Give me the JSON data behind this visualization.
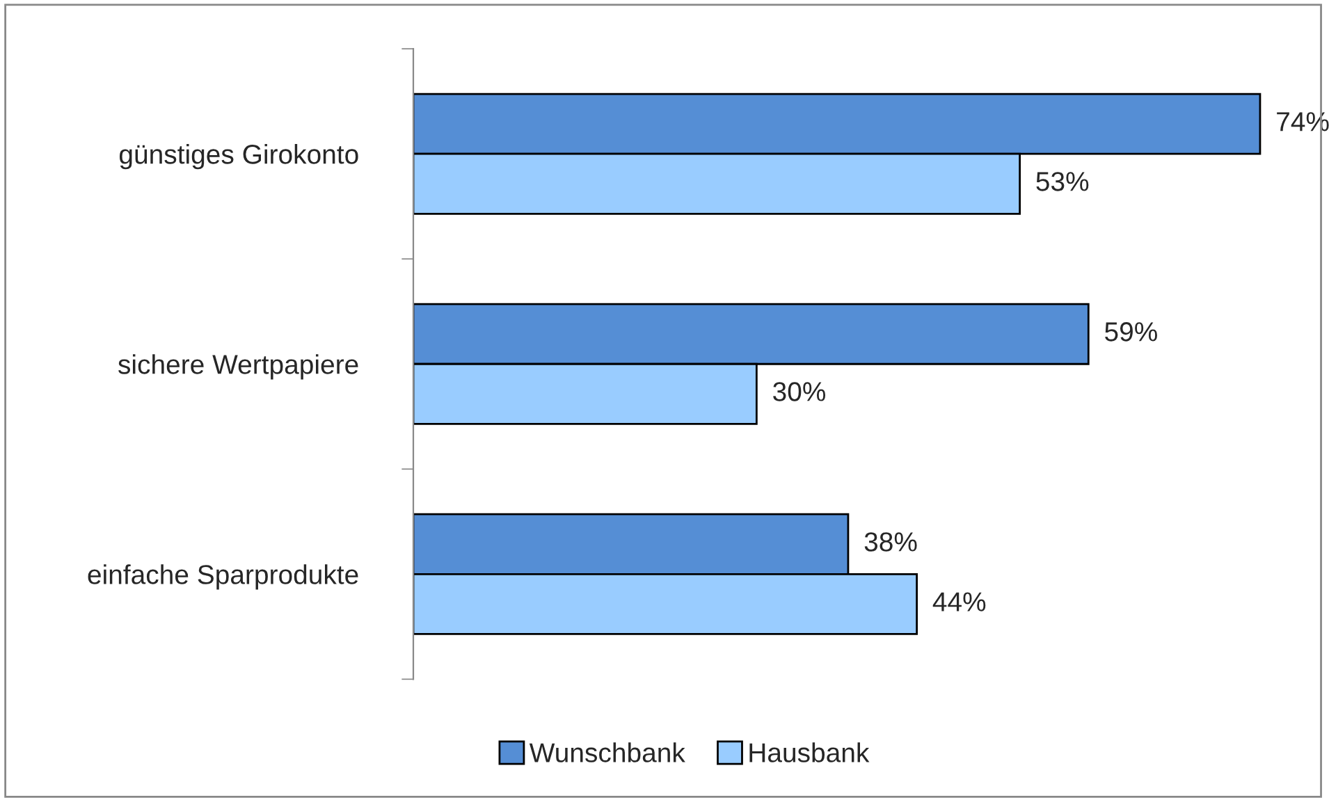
{
  "chart_data": {
    "type": "bar",
    "orientation": "horizontal",
    "categories": [
      "günstiges Girokonto",
      "sichere Wertpapiere",
      "einfache Sparprodukte"
    ],
    "series": [
      {
        "name": "Wunschbank",
        "color": "#558ed5",
        "values": [
          74,
          59,
          38
        ],
        "value_labels": [
          "74%",
          "59%",
          "38%"
        ]
      },
      {
        "name": "Hausbank",
        "color": "#99ccff",
        "values": [
          53,
          30,
          44
        ],
        "value_labels": [
          "53%",
          "30%",
          "44%"
        ]
      }
    ],
    "legend": "bottom",
    "grid": false,
    "tick_labels": "y"
  }
}
